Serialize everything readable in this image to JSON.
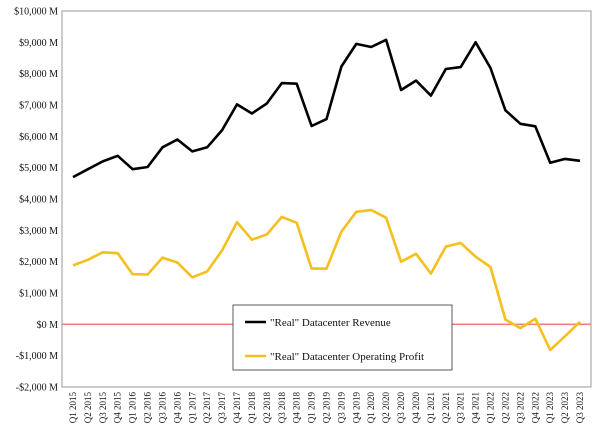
{
  "chart_data": {
    "type": "line",
    "title": "",
    "xlabel": "",
    "ylabel": "",
    "ylim": [
      -2000,
      10000
    ],
    "y_ticks": [
      -2000,
      -1000,
      0,
      1000,
      2000,
      3000,
      4000,
      5000,
      6000,
      7000,
      8000,
      9000,
      10000
    ],
    "y_tick_labels": [
      "-$2,000 M",
      "-$1,000 M",
      "$0 M",
      "$1,000 M",
      "$2,000 M",
      "$3,000 M",
      "$4,000 M",
      "$5,000 M",
      "$6,000 M",
      "$7,000 M",
      "$8,000 M",
      "$9,000 M",
      "$10,000 M"
    ],
    "categories": [
      "Q1 2015",
      "Q2 2015",
      "Q3 2015",
      "Q4 2015",
      "Q1 2016",
      "Q2 2016",
      "Q3 2016",
      "Q4 2016",
      "Q1 2017",
      "Q2 2017",
      "Q3 2017",
      "Q4 2017",
      "Q1 2018",
      "Q2 2018",
      "Q3 2018",
      "Q4 2018",
      "Q1 2019",
      "Q2 2019",
      "Q3 2019",
      "Q4 2019",
      "Q1 2020",
      "Q2 2020",
      "Q3 2020",
      "Q4 2020",
      "Q1 2021",
      "Q2 2021",
      "Q3 2021",
      "Q4 2021",
      "Q1 2022",
      "Q2 2022",
      "Q3 2022",
      "Q4 2022",
      "Q1 2023",
      "Q2 2023",
      "Q3 2023"
    ],
    "grid": false,
    "zero_line_color": "#f08080",
    "legend_position": "lower-center",
    "series": [
      {
        "name": "\"Real\" Datacenter Revenue",
        "color": "#000000",
        "values": [
          4700,
          4950,
          5200,
          5380,
          4950,
          5020,
          5650,
          5900,
          5520,
          5650,
          6200,
          7020,
          6730,
          7050,
          7700,
          7680,
          6330,
          6550,
          8230,
          8950,
          8850,
          9080,
          7480,
          7780,
          7300,
          8150,
          8210,
          9000,
          8180,
          6830,
          6400,
          6320,
          5160,
          5280,
          5220
        ]
      },
      {
        "name": "\"Real\" Datacenter Operating Profit",
        "color": "#f5bf1d",
        "values": [
          1880,
          2060,
          2300,
          2270,
          1600,
          1590,
          2130,
          1970,
          1500,
          1690,
          2360,
          3260,
          2700,
          2870,
          3430,
          3240,
          1780,
          1780,
          2960,
          3590,
          3650,
          3400,
          2000,
          2250,
          1620,
          2480,
          2600,
          2160,
          1830,
          150,
          -120,
          180,
          -820,
          -380,
          80
        ]
      }
    ]
  }
}
